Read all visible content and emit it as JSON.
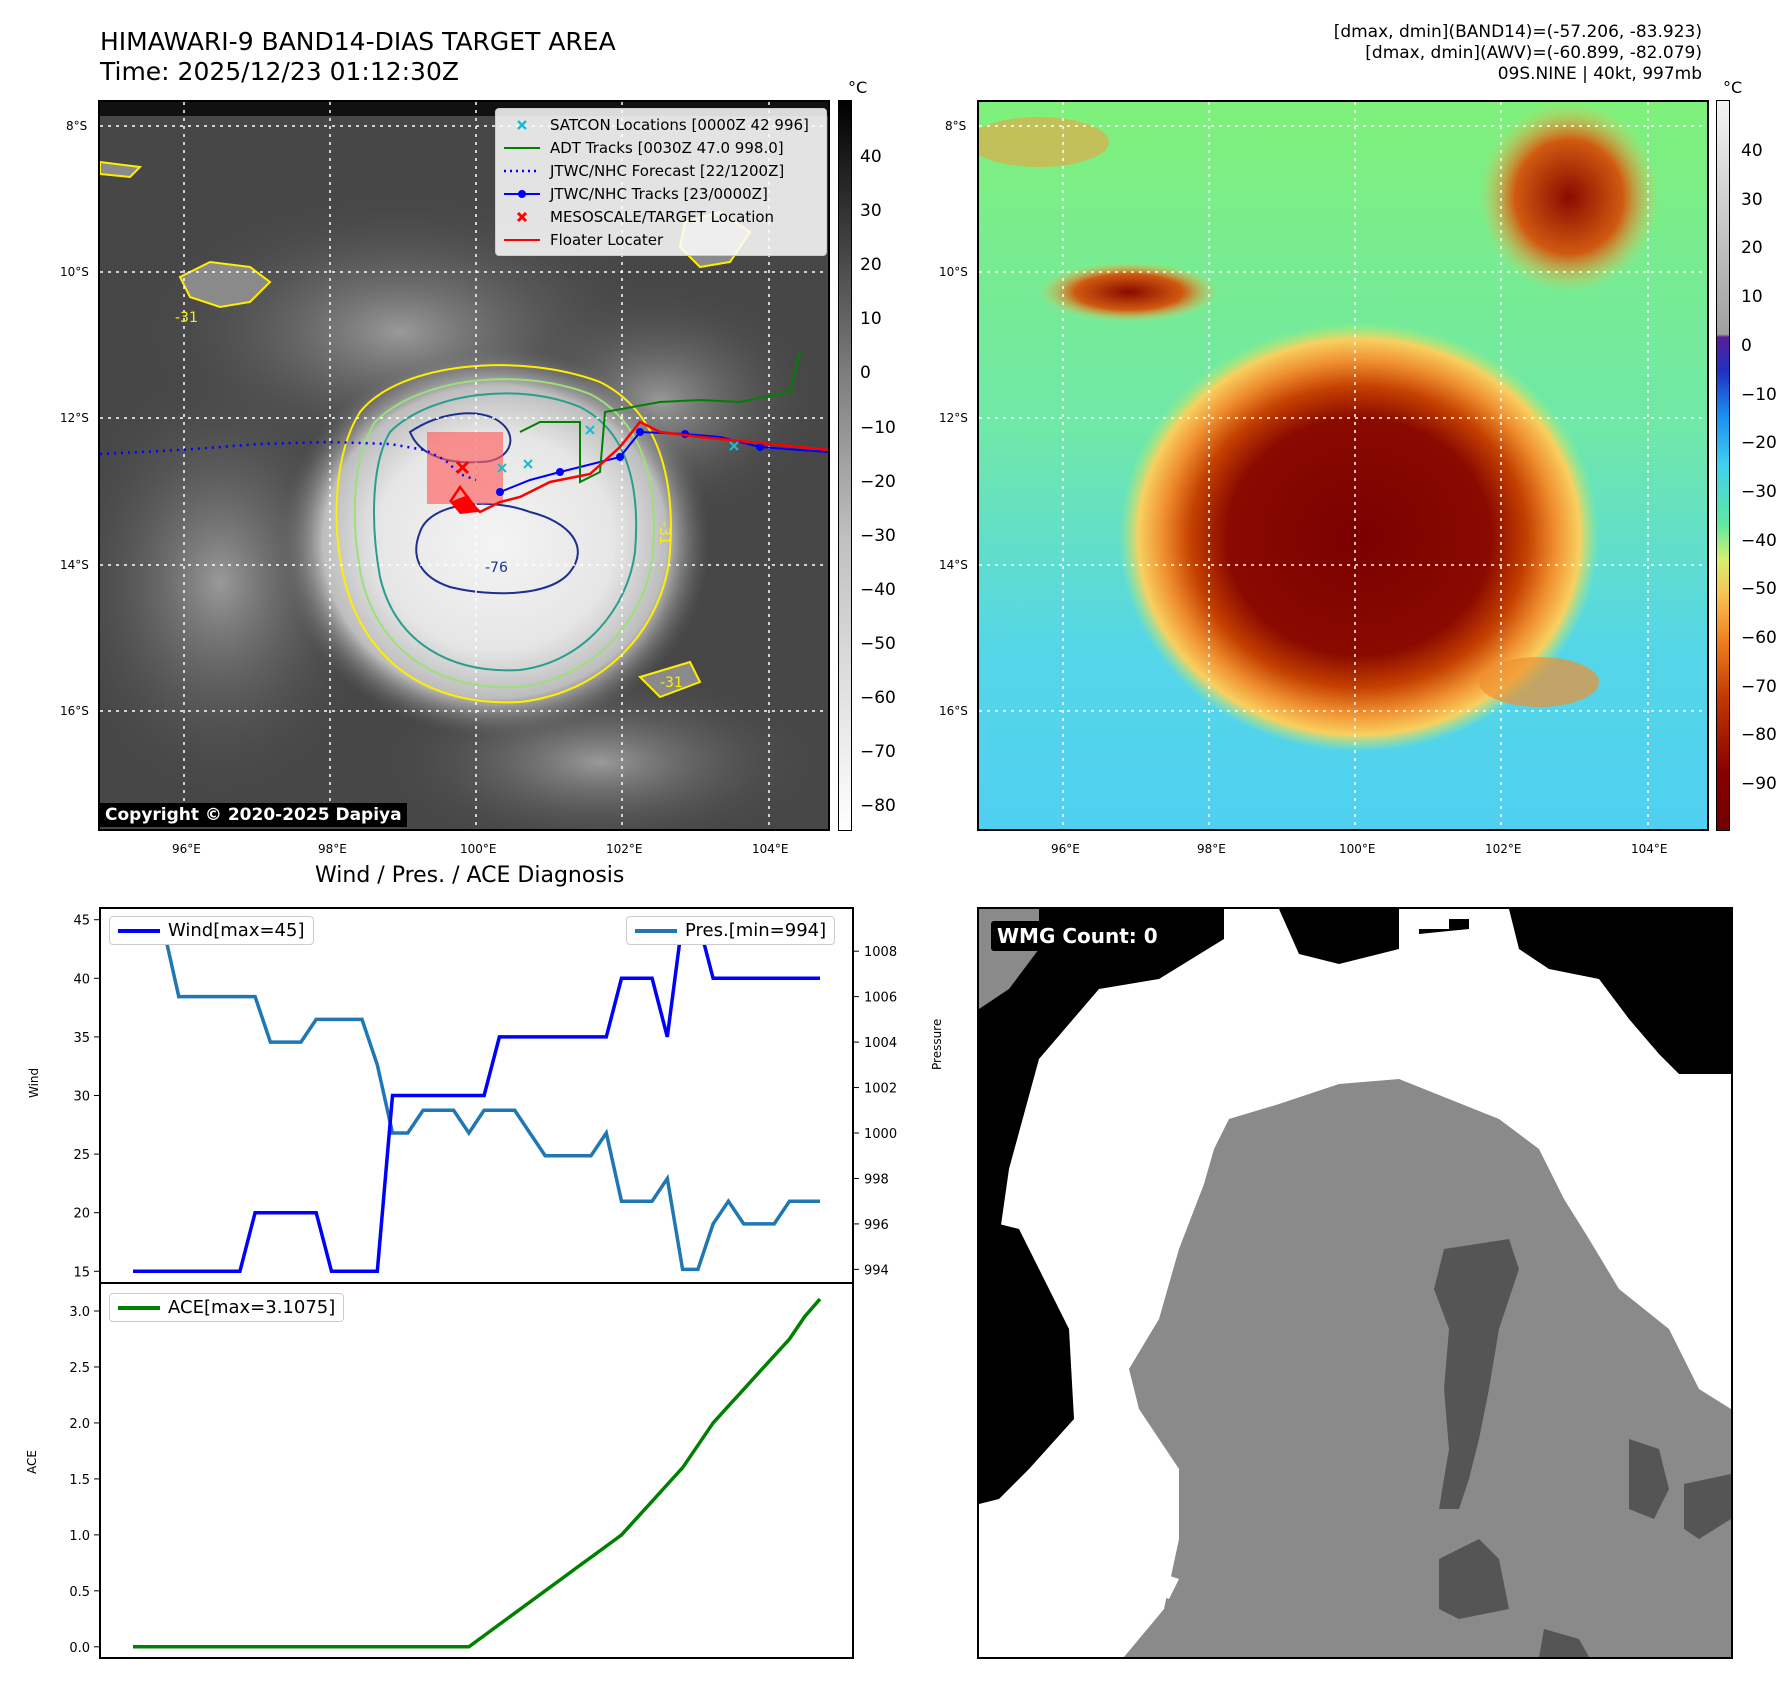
{
  "header": {
    "title_line1": "HIMAWARI-9 BAND14-DIAS TARGET AREA",
    "title_line2": "Time: 2025/12/23 01:12:30Z",
    "info_line1": "[dmax, dmin](BAND14)=(-57.206, -83.923)",
    "info_line2": "[dmax, dmin](AWV)=(-60.899, -82.079)",
    "info_line3": "09S.NINE | 40kt, 997mb"
  },
  "map": {
    "lat_labels": [
      "8°S",
      "10°S",
      "12°S",
      "14°S",
      "16°S"
    ],
    "lon_labels": [
      "96°E",
      "98°E",
      "100°E",
      "102°E",
      "104°E"
    ],
    "copyright": "Copyright © 2020-2025 Dapiya",
    "legend": [
      {
        "label": "SATCON Locations [0000Z 42 996]",
        "color": "#17becf",
        "style": "x"
      },
      {
        "label": "ADT Tracks [0030Z 47.0 998.0]",
        "color": "#008000",
        "style": "line"
      },
      {
        "label": "JTWC/NHC Forecast [22/1200Z]",
        "color": "#0000ff",
        "style": "dotted"
      },
      {
        "label": "JTWC/NHC Tracks [23/0000Z]",
        "color": "#0000ff",
        "style": "line-dot"
      },
      {
        "label": "MESOSCALE/TARGET Location",
        "color": "#ff0000",
        "style": "x"
      },
      {
        "label": "Floater Locater",
        "color": "#ff0000",
        "style": "line"
      }
    ],
    "contour_labels": [
      "-31",
      "-31",
      "-31",
      "-76"
    ]
  },
  "colorbar_left": {
    "unit": "°C",
    "ticks": [
      "40",
      "30",
      "20",
      "10",
      "0",
      "−10",
      "−20",
      "−30",
      "−40",
      "−50",
      "−60",
      "−70",
      "−80"
    ]
  },
  "colorbar_right": {
    "unit": "°C",
    "ticks": [
      "40",
      "30",
      "20",
      "10",
      "0",
      "−10",
      "−20",
      "−30",
      "−40",
      "−50",
      "−60",
      "−70",
      "−80",
      "−90"
    ]
  },
  "wmg": {
    "label": "WMG Count: 0"
  },
  "colors": {
    "wind": "#0000ff",
    "pressure": "#1f77b4",
    "ace": "#008000"
  },
  "chart_data": [
    {
      "type": "line",
      "title": "Wind / Pres. / ACE Diagnosis",
      "ylabel": "Wind",
      "ylim": [
        14,
        46
      ],
      "yticks": [
        "15",
        "20",
        "25",
        "30",
        "35",
        "40",
        "45"
      ],
      "series": [
        {
          "name": "Wind[max=45]",
          "values": [
            15,
            15,
            15,
            15,
            15,
            15,
            15,
            15,
            20,
            20,
            20,
            20,
            20,
            15,
            15,
            15,
            15,
            30,
            30,
            30,
            30,
            30,
            30,
            30,
            35,
            35,
            35,
            35,
            35,
            35,
            35,
            35,
            40,
            40,
            40,
            35,
            45,
            45,
            40,
            40,
            40,
            40,
            40,
            40,
            40,
            40
          ]
        }
      ]
    },
    {
      "type": "line",
      "ylabel": "Pressure",
      "ylim": [
        993.4,
        1009.9
      ],
      "yticks": [
        "994",
        "996",
        "998",
        "1000",
        "1002",
        "1004",
        "1006",
        "1008"
      ],
      "series": [
        {
          "name": "Pres.[min=994]",
          "values": [
            1009,
            1009,
            1009,
            1006,
            1006,
            1006,
            1006,
            1006,
            1006,
            1004,
            1004,
            1004,
            1005,
            1005,
            1005,
            1005,
            1003,
            1000,
            1000,
            1001,
            1001,
            1001,
            1000,
            1001,
            1001,
            1001,
            1000,
            999,
            999,
            999,
            999,
            1000,
            997,
            997,
            997,
            998,
            994,
            994,
            996,
            997,
            996,
            996,
            996,
            997,
            997,
            997
          ]
        }
      ]
    },
    {
      "type": "line",
      "ylabel": "ACE",
      "ylim": [
        -0.1,
        3.25
      ],
      "yticks": [
        "0.0",
        "0.5",
        "1.0",
        "1.5",
        "2.0",
        "2.5",
        "3.0"
      ],
      "series": [
        {
          "name": "ACE[max=3.1075]",
          "values": [
            0,
            0,
            0,
            0,
            0,
            0,
            0,
            0,
            0,
            0,
            0,
            0,
            0,
            0,
            0,
            0,
            0,
            0,
            0,
            0,
            0,
            0,
            0,
            0.1,
            0.2,
            0.3,
            0.4,
            0.5,
            0.6,
            0.7,
            0.8,
            0.9,
            1.0,
            1.15,
            1.3,
            1.45,
            1.6,
            1.8,
            2.0,
            2.15,
            2.3,
            2.45,
            2.6,
            2.75,
            2.95,
            3.1075
          ]
        }
      ]
    }
  ]
}
